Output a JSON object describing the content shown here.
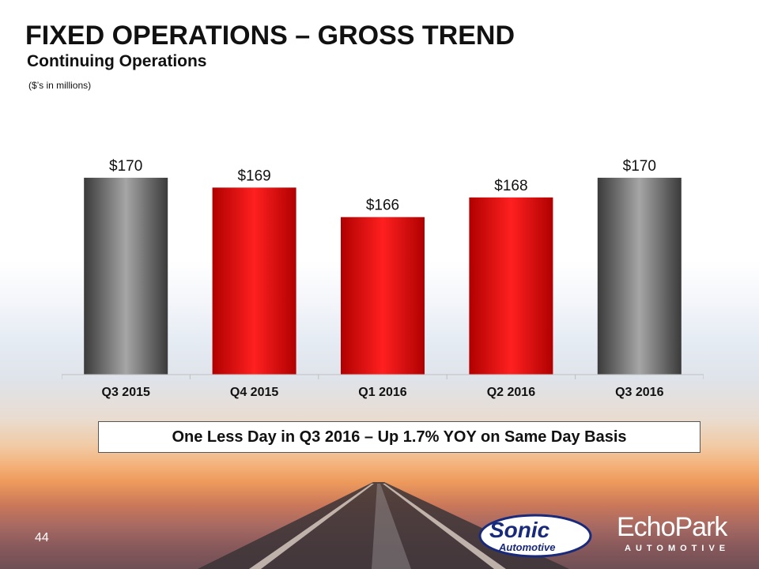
{
  "header": {
    "title": "FIXED OPERATIONS – GROSS TREND",
    "subtitle": "Continuing Operations",
    "units": "($’s in millions)"
  },
  "chart_data": {
    "type": "bar",
    "categories": [
      "Q3 2015",
      "Q4 2015",
      "Q1 2016",
      "Q2 2016",
      "Q3 2016"
    ],
    "values": [
      170,
      169,
      166,
      168,
      170
    ],
    "value_labels": [
      "$170",
      "$169",
      "$166",
      "$168",
      "$170"
    ],
    "bar_colors": [
      "#7a7a7a",
      "#e00000",
      "#e00000",
      "#e00000",
      "#7a7a7a"
    ],
    "ylim": [
      150,
      172
    ],
    "grid": false,
    "legend": "none"
  },
  "note": "One Less Day in Q3 2016 – Up 1.7% YOY on Same Day Basis",
  "footer": {
    "page_number": "44",
    "logo_sonic_top": "Sonic",
    "logo_sonic_bottom": "Automotive",
    "logo_echo": "EchoPark",
    "logo_echo_sub": "AUTOMOTIVE"
  }
}
